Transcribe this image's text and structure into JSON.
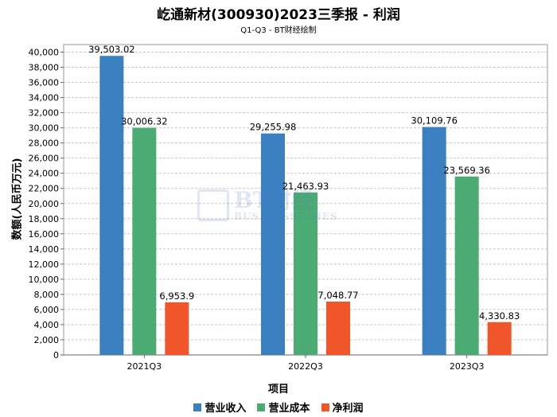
{
  "chart_data": {
    "type": "bar",
    "title": "屹通新材(300930)2023三季报 - 利润",
    "subtitle": "Q1-Q3 - BT财经绘制",
    "xlabel": "项目",
    "ylabel": "数额(人民币万元)",
    "categories": [
      "2021Q3",
      "2022Q3",
      "2023Q3"
    ],
    "ylim": [
      0,
      41000
    ],
    "yticks": [
      0,
      2000,
      4000,
      6000,
      8000,
      10000,
      12000,
      14000,
      16000,
      18000,
      20000,
      22000,
      24000,
      26000,
      28000,
      30000,
      32000,
      34000,
      36000,
      38000,
      40000
    ],
    "ytick_labels": [
      "0",
      "2,000",
      "4,000",
      "6,000",
      "8,000",
      "10,000",
      "12,000",
      "14,000",
      "16,000",
      "18,000",
      "20,000",
      "22,000",
      "24,000",
      "26,000",
      "28,000",
      "30,000",
      "32,000",
      "34,000",
      "36,000",
      "38,000",
      "40,000"
    ],
    "grid": true,
    "legend_position": "bottom",
    "series": [
      {
        "name": "营业收入",
        "color": "#3a80c1",
        "values": [
          39503.02,
          29255.98,
          30109.76
        ],
        "labels": [
          "39,503.02",
          "29,255.98",
          "30,109.76"
        ]
      },
      {
        "name": "营业成本",
        "color": "#4aab73",
        "values": [
          30006.32,
          21463.93,
          23569.36
        ],
        "labels": [
          "30,006.32",
          "21,463.93",
          "23,569.36"
        ]
      },
      {
        "name": "净利润",
        "color": "#f0562a",
        "values": [
          6953.9,
          7048.77,
          4330.83
        ],
        "labels": [
          "6,953.9",
          "7,048.77",
          "4,330.83"
        ]
      }
    ]
  },
  "watermark": {
    "brand": "BT财经",
    "sub": "BUSINESSTIMES"
  }
}
